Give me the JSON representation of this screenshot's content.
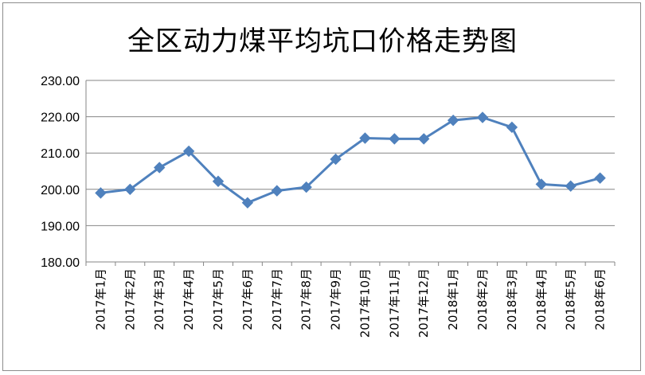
{
  "chart_data": {
    "type": "line",
    "title": "全区动力煤平均坑口价格走势图",
    "xlabel": "",
    "ylabel": "",
    "ylim": [
      180,
      230
    ],
    "yticks": [
      "230.00",
      "220.00",
      "210.00",
      "200.00",
      "190.00",
      "180.00"
    ],
    "grid": true,
    "legend": "none",
    "categories": [
      "2017年1月",
      "2017年2月",
      "2017年3月",
      "2017年4月",
      "2017年5月",
      "2017年6月",
      "2017年7月",
      "2017年8月",
      "2017年9月",
      "2017年10月",
      "2017年11月",
      "2017年12月",
      "2018年1月",
      "2018年2月",
      "2018年3月",
      "2018年4月",
      "2018年5月",
      "2018年6月"
    ],
    "series": [
      {
        "values": [
          199.0,
          200.0,
          206.0,
          210.5,
          202.2,
          196.3,
          199.6,
          200.6,
          208.3,
          214.1,
          213.9,
          213.9,
          219.0,
          219.8,
          217.1,
          201.4,
          200.9,
          203.1
        ]
      }
    ],
    "colors": {
      "line": "#4f81bd",
      "marker": "#4f81bd",
      "grid": "#868686"
    }
  }
}
